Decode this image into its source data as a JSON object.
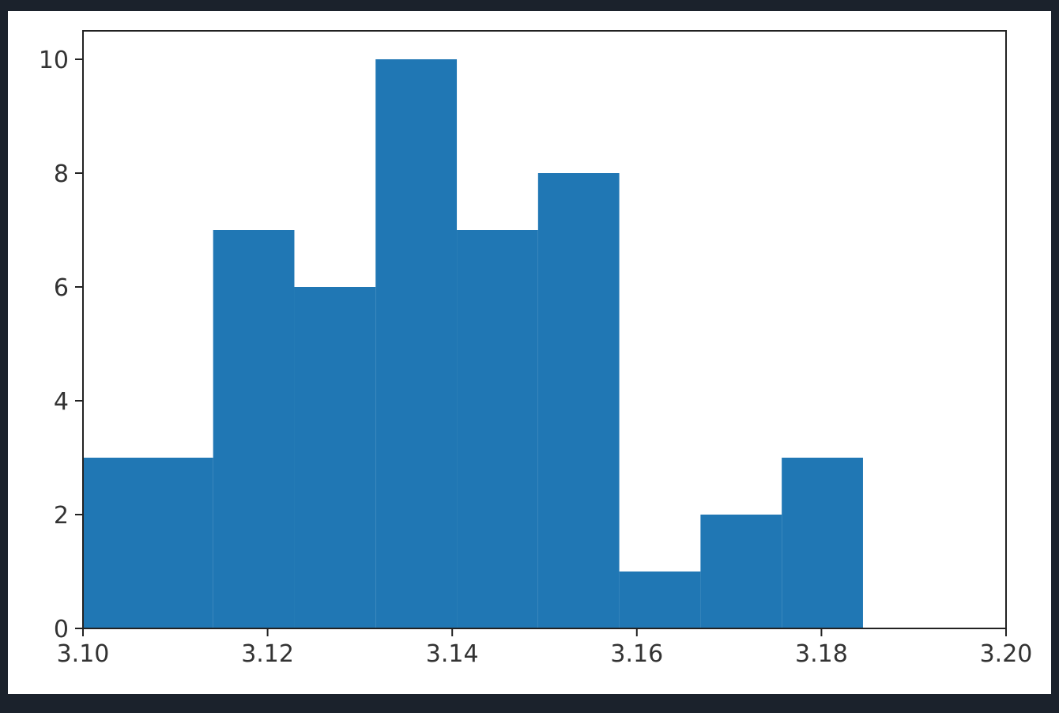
{
  "chart_data": {
    "type": "bar",
    "subtype": "histogram",
    "title": "",
    "xlabel": "",
    "ylabel": "",
    "xlim": [
      3.1,
      3.2
    ],
    "ylim": [
      0,
      10.5
    ],
    "bin_edges": [
      3.1,
      3.1141,
      3.1229,
      3.1317,
      3.1405,
      3.1493,
      3.1581,
      3.1669,
      3.1757,
      3.1845
    ],
    "values": [
      3,
      7,
      6,
      10,
      7,
      8,
      1,
      2,
      3
    ],
    "x_ticks": [
      3.1,
      3.12,
      3.14,
      3.16,
      3.18,
      3.2
    ],
    "x_tick_labels": [
      "3.10",
      "3.12",
      "3.14",
      "3.16",
      "3.18",
      "3.20"
    ],
    "y_ticks": [
      0,
      2,
      4,
      6,
      8,
      10
    ],
    "y_tick_labels": [
      "0",
      "2",
      "4",
      "6",
      "8",
      "10"
    ],
    "bar_color": "#2077b4",
    "grid": false,
    "legend": "none"
  }
}
